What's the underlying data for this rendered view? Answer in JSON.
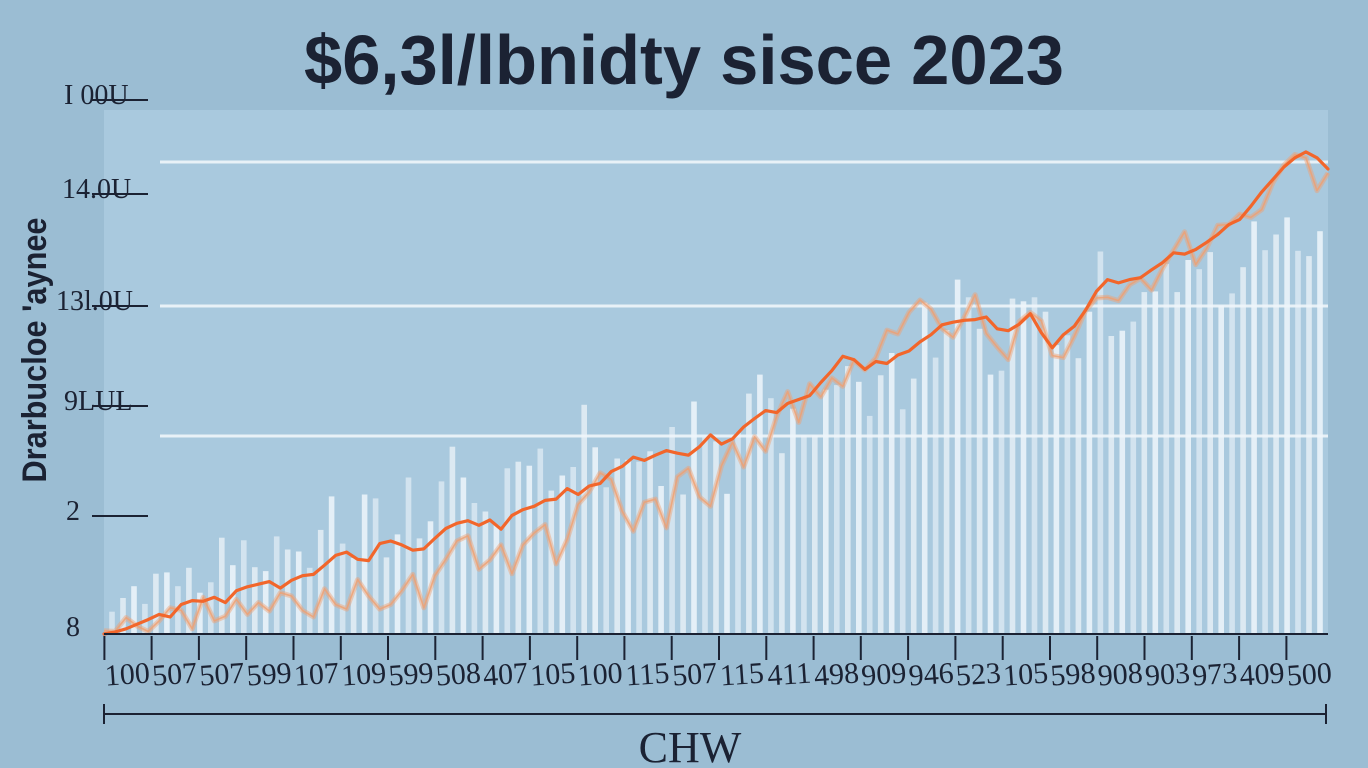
{
  "chart_data": {
    "type": "line",
    "title": "$6,3l/lbnidty sisce 2023",
    "xlabel": "CHW",
    "ylabel": "Drarbucloe 'aynee",
    "y_tick_labels": [
      "8",
      "2",
      "9LUL",
      "13l.0U",
      "14.0U",
      "I 00U"
    ],
    "x_tick_labels": [
      "100",
      "507",
      "507",
      "599",
      "107",
      "109",
      "599",
      "508",
      "407",
      "105",
      "100",
      "115",
      "507",
      "115",
      "411",
      "498",
      "909",
      "946",
      "523",
      "105",
      "598",
      "908",
      "903",
      "973",
      "409",
      "500"
    ],
    "grid": "horizontal",
    "colors": {
      "background": "#9bbdd3",
      "plot_area": "#a9c9de",
      "line": "#f2662b",
      "line_halo": "#f0a070",
      "bars": "#eef5fa",
      "gridline": "#e8f1f7",
      "text": "#1b2233"
    },
    "series": [
      {
        "values": [
          0.0,
          0.3,
          0.8,
          1.5,
          2.2,
          3.0,
          2.6,
          4.5,
          5.1,
          5.0,
          5.6,
          4.8,
          6.6,
          7.2,
          7.6,
          8.0,
          7.0,
          8.2,
          8.9,
          9.1,
          10.5,
          12.0,
          12.5,
          11.4,
          11.2,
          13.8,
          14.2,
          13.6,
          12.8,
          13.0,
          14.6,
          16.1,
          16.9,
          17.3,
          16.6,
          17.4,
          16.0,
          18.1,
          19.0,
          19.5,
          20.4,
          20.6,
          22.2,
          21.3,
          22.6,
          23.0,
          24.8,
          25.6,
          27.0,
          26.5,
          27.3,
          28.0,
          27.6,
          27.3,
          28.6,
          30.4,
          29.0,
          29.8,
          31.6,
          32.9,
          34.1,
          33.8,
          35.2,
          35.8,
          36.4,
          38.4,
          40.2,
          42.4,
          41.9,
          40.4,
          41.6,
          41.3,
          42.6,
          43.2,
          44.6,
          45.7,
          47.2,
          47.6,
          47.9,
          48.0,
          48.4,
          46.6,
          46.3,
          47.3,
          48.9,
          46.0,
          43.7,
          45.7,
          47.0,
          49.4,
          52.3,
          54.1,
          53.6,
          54.1,
          54.4,
          55.6,
          56.7,
          58.2,
          58.0,
          58.7,
          59.8,
          61.0,
          62.5,
          63.3,
          65.3,
          67.5,
          69.4,
          71.3,
          72.7,
          73.6,
          72.7,
          71.0
        ]
      },
      {
        "values": [
          0.5,
          0.4,
          2.5,
          1.2,
          0.4,
          2.0,
          4.0,
          3.6,
          0.8,
          5.6,
          2.0,
          2.7,
          5.3,
          3.0,
          4.8,
          3.5,
          6.3,
          5.8,
          3.6,
          2.6,
          6.9,
          4.5,
          3.8,
          8.3,
          5.8,
          3.8,
          4.5,
          6.6,
          9.1,
          4.0,
          8.9,
          11.4,
          14.2,
          15.0,
          9.9,
          11.3,
          13.6,
          9.2,
          13.6,
          15.4,
          16.7,
          10.7,
          14.4,
          19.8,
          21.7,
          24.6,
          23.6,
          18.7,
          15.7,
          20.1,
          20.6,
          16.2,
          24.0,
          25.3,
          20.9,
          19.5,
          25.7,
          29.3,
          25.5,
          30.1,
          27.9,
          33.2,
          37.0,
          32.3,
          38.2,
          36.2,
          39.1,
          37.8,
          41.8,
          40.3,
          42.2,
          46.4,
          45.8,
          49.1,
          51.0,
          49.6,
          46.6,
          45.3,
          48.3,
          51.8,
          45.9,
          43.8,
          41.9,
          47.7,
          49.1,
          47.8,
          42.5,
          42.2,
          45.5,
          49.3,
          51.3,
          51.4,
          50.9,
          53.3,
          54.3,
          52.5,
          55.8,
          58.6,
          61.4,
          56.4,
          58.9,
          62.4,
          62.5,
          64.1,
          63.6,
          64.8,
          68.9,
          71.6,
          73.2,
          72.7,
          67.7,
          70.4
        ]
      }
    ],
    "bars": [
      3.4,
      5.5,
      7.3,
      4.6,
      9.2,
      9.4,
      7.3,
      10.1,
      6.3,
      7.9,
      14.7,
      10.5,
      14.3,
      10.2,
      9.6,
      14.9,
      12.9,
      12.6,
      10.1,
      15.9,
      21.0,
      13.8,
      11.6,
      21.3,
      20.7,
      11.7,
      15.2,
      23.9,
      14.6,
      17.2,
      23.3,
      28.6,
      23.9,
      20.0,
      18.7,
      16.6,
      25.3,
      26.3,
      25.7,
      28.3,
      21.9,
      24.2,
      25.5,
      35.0,
      28.5,
      22.4,
      26.8,
      26.6,
      26.3,
      27.9,
      22.6,
      31.6,
      21.3,
      35.5,
      30.0,
      29.4,
      21.4,
      30.7,
      36.7,
      39.6,
      36.0,
      27.6,
      34.4,
      30.3,
      30.3,
      37.3,
      38.0,
      40.9,
      38.5,
      33.3,
      39.5,
      42.9,
      34.3,
      39.0,
      50.6,
      42.2,
      46.4,
      54.1,
      51.4,
      46.6,
      39.6,
      40.2,
      51.2,
      50.8,
      51.4,
      49.2,
      44.1,
      45.6,
      42.1,
      49.2,
      58.4,
      45.5,
      46.3,
      47.7,
      52.2,
      52.3,
      56.5,
      52.2,
      57.1,
      55.7,
      58.3,
      50.1,
      52.0,
      56.0,
      63.0,
      58.6,
      61.0,
      63.6,
      58.5,
      57.7,
      61.5
    ]
  }
}
